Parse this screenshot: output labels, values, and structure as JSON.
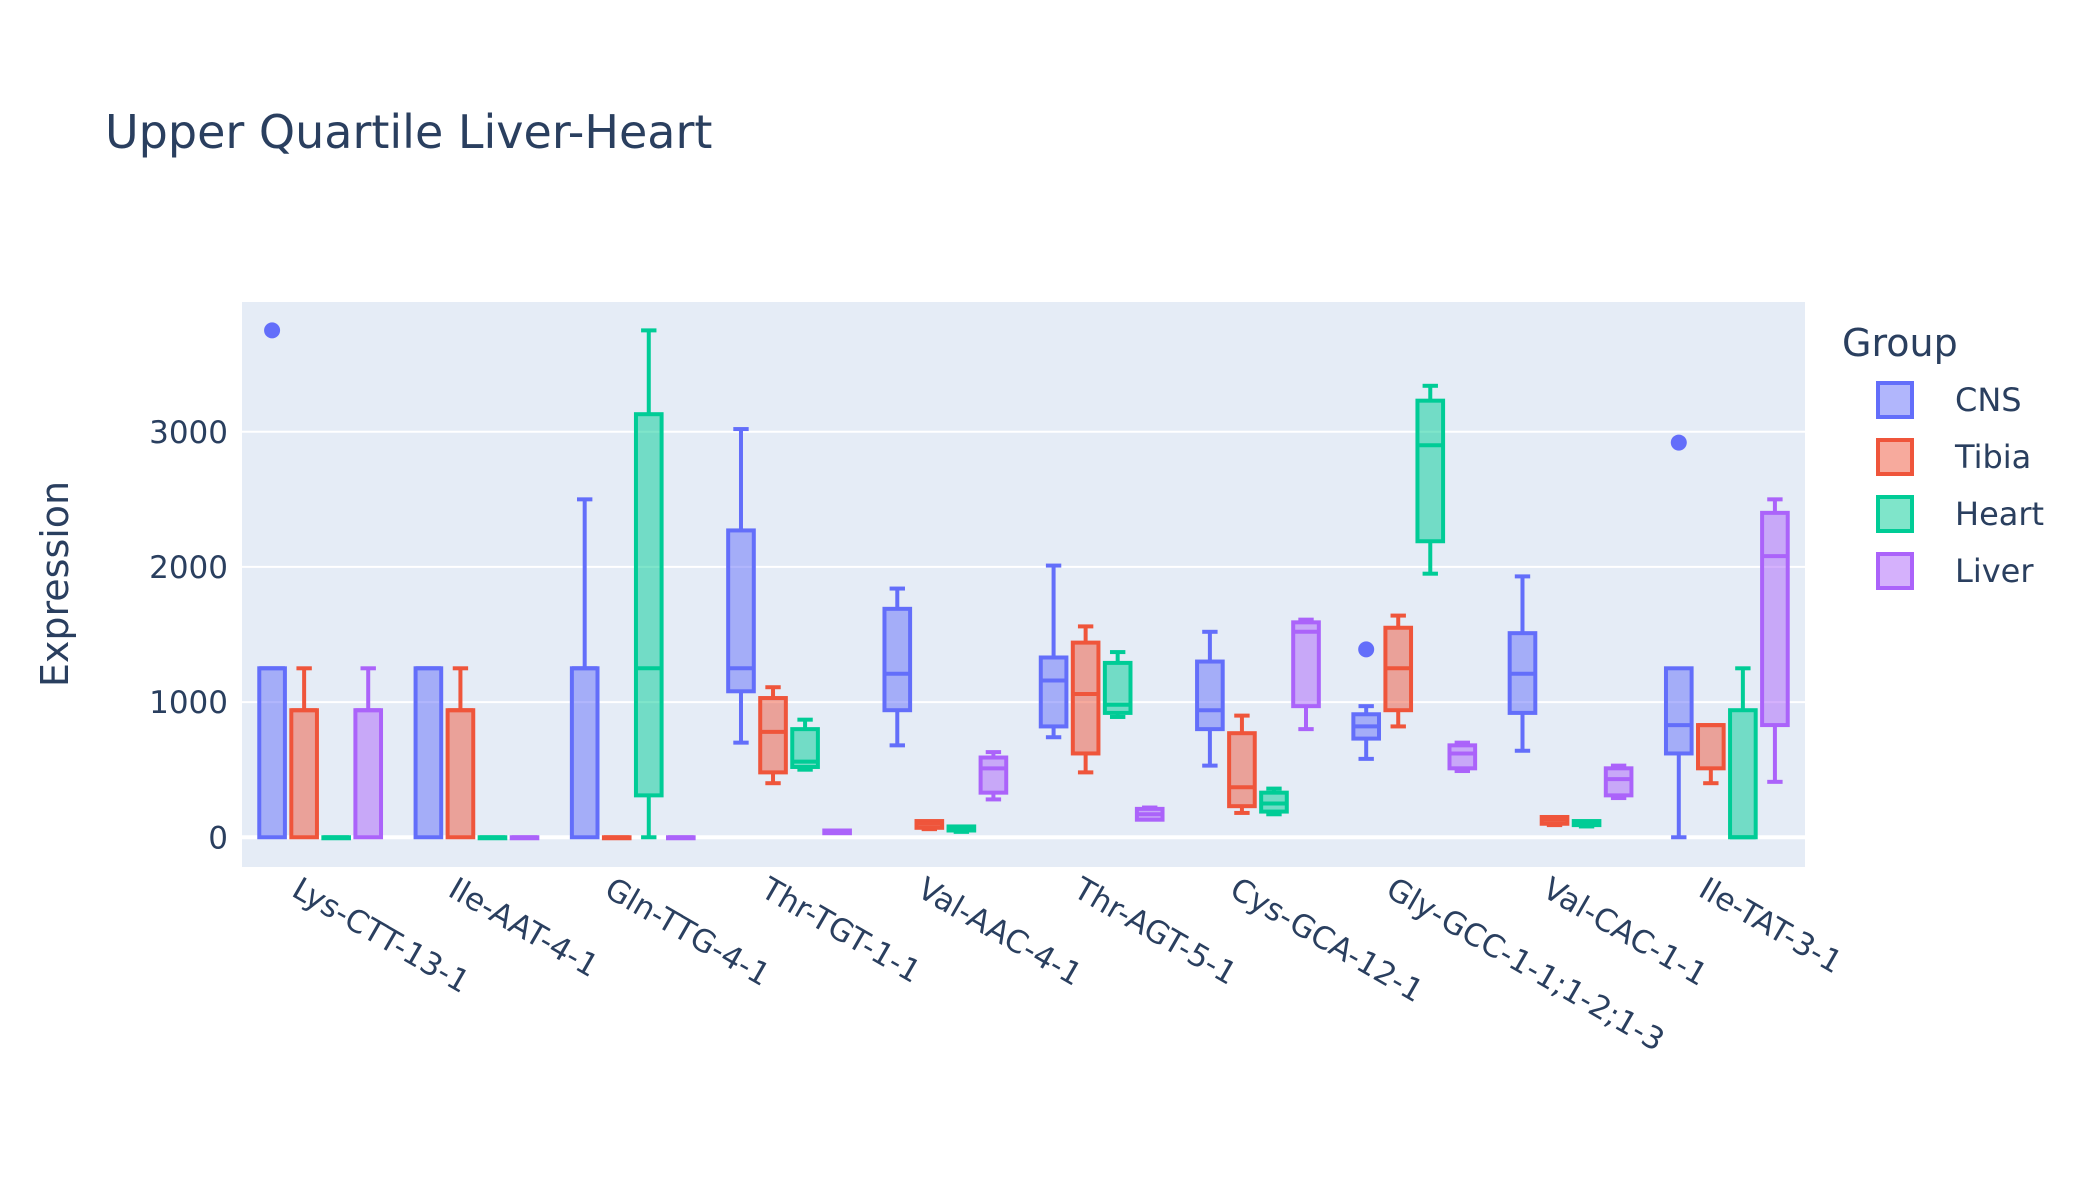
{
  "chart_data": {
    "type": "box",
    "title": "Upper Quartile Liver-Heart",
    "xlabel": "",
    "ylabel": "Expression",
    "ylim": [
      -220,
      3960
    ],
    "yticks": [
      0,
      1000,
      2000,
      3000
    ],
    "ytick_labels": [
      "0",
      "1000",
      "2000",
      "3000"
    ],
    "grid": true,
    "legend": {
      "title": "Group",
      "placement": "right"
    },
    "categories": [
      "Lys-CTT-13-1",
      "Ile-AAT-4-1",
      "Gln-TTG-4-1",
      "Thr-TGT-1-1",
      "Val-AAC-4-1",
      "Thr-AGT-5-1",
      "Cys-GCA-12-1",
      "Gly-GCC-1-1;1-2;1-3",
      "Val-CAC-1-1",
      "Ile-TAT-3-1"
    ],
    "series": [
      {
        "name": "CNS",
        "color": "#636efa",
        "boxes": [
          {
            "min": 0,
            "q1": 0,
            "median": 1250,
            "q3": 1250,
            "max": 1250,
            "outliers": [
              3750
            ]
          },
          {
            "min": 0,
            "q1": 0,
            "median": 1250,
            "q3": 1250,
            "max": 1250,
            "outliers": []
          },
          {
            "min": 0,
            "q1": 0,
            "median": 1250,
            "q3": 1250,
            "max": 2500,
            "outliers": []
          },
          {
            "min": 700,
            "q1": 1080,
            "median": 1250,
            "q3": 2270,
            "max": 3020,
            "outliers": []
          },
          {
            "min": 680,
            "q1": 940,
            "median": 1210,
            "q3": 1690,
            "max": 1840,
            "outliers": []
          },
          {
            "min": 740,
            "q1": 820,
            "median": 1160,
            "q3": 1330,
            "max": 2010,
            "outliers": []
          },
          {
            "min": 530,
            "q1": 800,
            "median": 940,
            "q3": 1300,
            "max": 1520,
            "outliers": []
          },
          {
            "min": 580,
            "q1": 730,
            "median": 820,
            "q3": 910,
            "max": 970,
            "outliers": [
              1390
            ]
          },
          {
            "min": 640,
            "q1": 920,
            "median": 1210,
            "q3": 1510,
            "max": 1930,
            "outliers": []
          },
          {
            "min": 0,
            "q1": 620,
            "median": 830,
            "q3": 1250,
            "max": 1250,
            "outliers": [
              2920
            ]
          }
        ]
      },
      {
        "name": "Tibia",
        "color": "#ef553b",
        "boxes": [
          {
            "min": 0,
            "q1": 0,
            "median": 940,
            "q3": 940,
            "max": 1250,
            "outliers": []
          },
          {
            "min": 0,
            "q1": 0,
            "median": 940,
            "q3": 940,
            "max": 1250,
            "outliers": []
          },
          {
            "min": 0,
            "q1": 0,
            "median": 0,
            "q3": 0,
            "max": 0,
            "outliers": []
          },
          {
            "min": 400,
            "q1": 480,
            "median": 780,
            "q3": 1030,
            "max": 1110,
            "outliers": []
          },
          {
            "min": 60,
            "q1": 70,
            "median": 100,
            "q3": 120,
            "max": 120,
            "outliers": []
          },
          {
            "min": 480,
            "q1": 620,
            "median": 1060,
            "q3": 1440,
            "max": 1560,
            "outliers": []
          },
          {
            "min": 180,
            "q1": 230,
            "median": 370,
            "q3": 770,
            "max": 900,
            "outliers": []
          },
          {
            "min": 820,
            "q1": 940,
            "median": 1250,
            "q3": 1550,
            "max": 1640,
            "outliers": []
          },
          {
            "min": 90,
            "q1": 100,
            "median": 130,
            "q3": 150,
            "max": 150,
            "outliers": []
          },
          {
            "min": 400,
            "q1": 510,
            "median": 830,
            "q3": 830,
            "max": 830,
            "outliers": []
          }
        ]
      },
      {
        "name": "Heart",
        "color": "#00cc96",
        "boxes": [
          {
            "min": 0,
            "q1": 0,
            "median": 0,
            "q3": 0,
            "max": 0,
            "outliers": []
          },
          {
            "min": 0,
            "q1": 0,
            "median": 0,
            "q3": 0,
            "max": 0,
            "outliers": []
          },
          {
            "min": 0,
            "q1": 310,
            "median": 1250,
            "q3": 3130,
            "max": 3750,
            "outliers": []
          },
          {
            "min": 500,
            "q1": 520,
            "median": 560,
            "q3": 800,
            "max": 870,
            "outliers": []
          },
          {
            "min": 40,
            "q1": 50,
            "median": 60,
            "q3": 80,
            "max": 80,
            "outliers": []
          },
          {
            "min": 890,
            "q1": 920,
            "median": 980,
            "q3": 1290,
            "max": 1370,
            "outliers": []
          },
          {
            "min": 170,
            "q1": 190,
            "median": 250,
            "q3": 330,
            "max": 360,
            "outliers": []
          },
          {
            "min": 1950,
            "q1": 2190,
            "median": 2900,
            "q3": 3230,
            "max": 3340,
            "outliers": []
          },
          {
            "min": 80,
            "q1": 90,
            "median": 110,
            "q3": 120,
            "max": 120,
            "outliers": []
          },
          {
            "min": 0,
            "q1": 0,
            "median": 0,
            "q3": 940,
            "max": 1250,
            "outliers": []
          }
        ]
      },
      {
        "name": "Liver",
        "color": "#ab63fa",
        "boxes": [
          {
            "min": 0,
            "q1": 0,
            "median": 940,
            "q3": 940,
            "max": 1250,
            "outliers": []
          },
          {
            "min": 0,
            "q1": 0,
            "median": 0,
            "q3": 0,
            "max": 0,
            "outliers": []
          },
          {
            "min": 0,
            "q1": 0,
            "median": 0,
            "q3": 0,
            "max": 0,
            "outliers": []
          },
          {
            "min": 30,
            "q1": 30,
            "median": 40,
            "q3": 50,
            "max": 50,
            "outliers": []
          },
          {
            "min": 280,
            "q1": 330,
            "median": 510,
            "q3": 590,
            "max": 630,
            "outliers": []
          },
          {
            "min": 130,
            "q1": 130,
            "median": 170,
            "q3": 210,
            "max": 220,
            "outliers": []
          },
          {
            "min": 800,
            "q1": 970,
            "median": 1520,
            "q3": 1590,
            "max": 1610,
            "outliers": []
          },
          {
            "min": 490,
            "q1": 510,
            "median": 620,
            "q3": 680,
            "max": 700,
            "outliers": []
          },
          {
            "min": 290,
            "q1": 310,
            "median": 430,
            "q3": 510,
            "max": 530,
            "outliers": []
          },
          {
            "min": 410,
            "q1": 830,
            "median": 2080,
            "q3": 2400,
            "max": 2500,
            "outliers": []
          }
        ]
      }
    ]
  }
}
